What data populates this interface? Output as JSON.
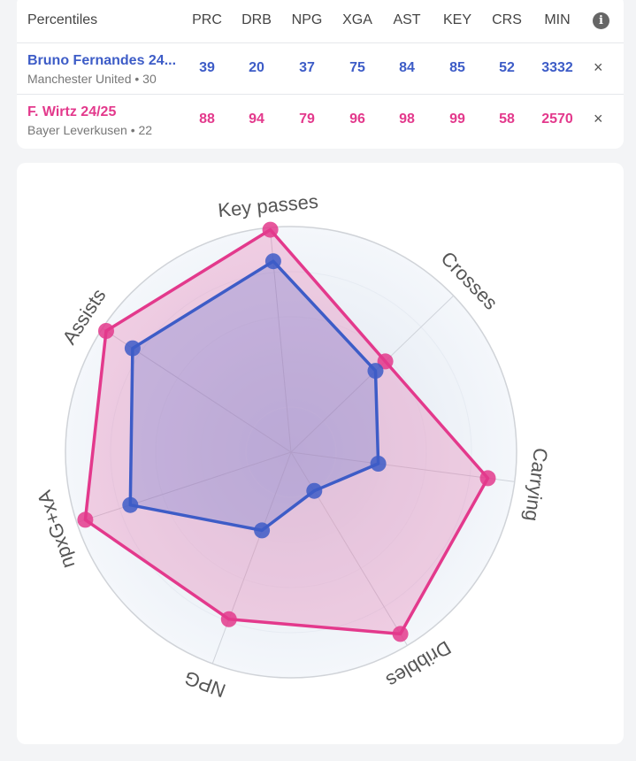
{
  "table": {
    "title": "Percentiles",
    "columns": [
      "PRC",
      "DRB",
      "NPG",
      "XGA",
      "AST",
      "KEY",
      "CRS",
      "MIN"
    ],
    "players": [
      {
        "name": "Bruno Fernandes 24...",
        "subtitle": "Manchester United • 30",
        "values": [
          "39",
          "20",
          "37",
          "75",
          "84",
          "85",
          "52",
          "3332"
        ],
        "color": "#3d5cc7"
      },
      {
        "name": "F. Wirtz 24/25",
        "subtitle": "Bayer Leverkusen • 22",
        "values": [
          "88",
          "94",
          "79",
          "96",
          "98",
          "99",
          "58",
          "2570"
        ],
        "color": "#e3398c"
      }
    ],
    "remove_label": "×",
    "info_icon": "info-icon"
  },
  "chart_data": {
    "type": "radar",
    "axes": [
      "Key passes",
      "Crosses",
      "Carrying",
      "Dribbles",
      "NPG",
      "npxG+xA",
      "Assists"
    ],
    "range": [
      0,
      100
    ],
    "series": [
      {
        "name": "F. Wirtz 24/25",
        "values": [
          99,
          58,
          88,
          94,
          79,
          96,
          98
        ],
        "color": "#e3398c"
      },
      {
        "name": "Bruno Fernandes 24...",
        "values": [
          85,
          52,
          39,
          20,
          37,
          75,
          84
        ],
        "color": "#3d5cc7"
      }
    ]
  }
}
